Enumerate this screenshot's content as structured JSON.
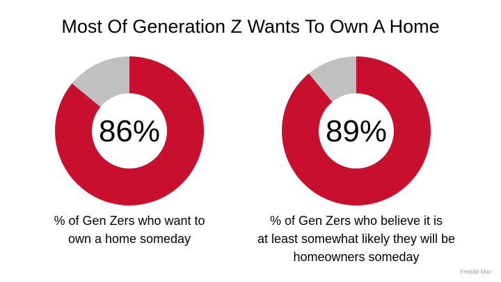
{
  "title": "Most Of Generation Z Wants To Own A Home",
  "source": "Freddie Mac",
  "colors": {
    "primary": "#c8102e",
    "remainder": "#c0c0c0",
    "center": "#ffffff"
  },
  "chart_data": [
    {
      "type": "pie",
      "title": "",
      "slices": [
        {
          "label": "",
          "value": 86
        },
        {
          "label": "",
          "value": 14
        }
      ],
      "center_label": "86%",
      "caption_lines": [
        "% of Gen Zers who want to",
        "own a home someday"
      ]
    },
    {
      "type": "pie",
      "title": "",
      "slices": [
        {
          "label": "",
          "value": 89
        },
        {
          "label": "",
          "value": 11
        }
      ],
      "center_label": "89%",
      "caption_lines": [
        "% of Gen Zers who believe it is",
        "at least somewhat likely they will be",
        "homeowners someday"
      ]
    }
  ]
}
